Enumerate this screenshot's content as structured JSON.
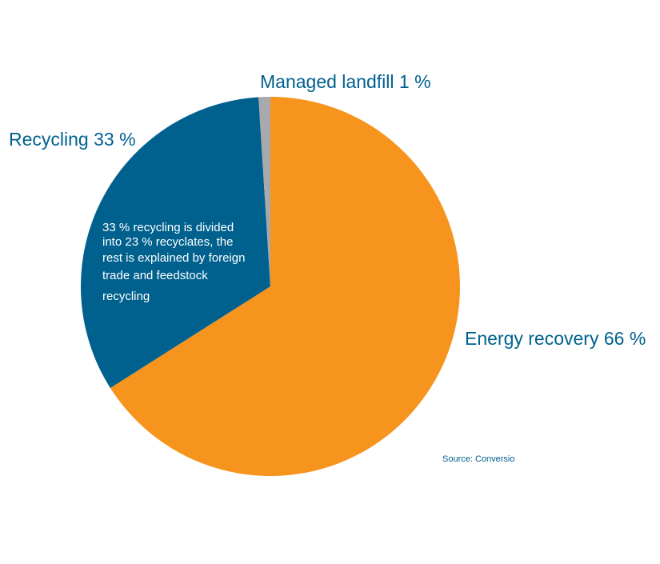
{
  "chart_data": {
    "type": "pie",
    "slices": [
      {
        "name": "Energy recovery",
        "value": 66,
        "label": "Energy recovery 66 %",
        "color": "#F7941D"
      },
      {
        "name": "Recycling",
        "value": 33,
        "label": "Recycling 33 %",
        "color": "#00618E"
      },
      {
        "name": "Managed landfill",
        "value": 1,
        "label": "Managed landfill 1 %",
        "color": "#A7A9AC"
      }
    ],
    "annotation_lines": [
      "33 % recycling is divided",
      "into 23 % recyclates, the",
      "rest is explained by foreign",
      "trade and feedstock",
      "recycling"
    ],
    "source": "Source: Conversio"
  },
  "colors": {
    "label_text": "#00618E",
    "annotation_text": "#FFFFFF",
    "background": "#FFFFFF"
  }
}
